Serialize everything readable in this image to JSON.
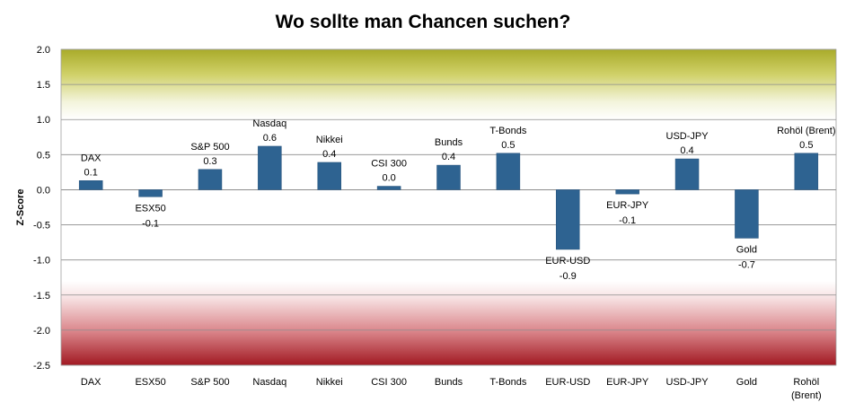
{
  "chart_data": {
    "type": "bar",
    "title": "Wo sollte man Chancen suchen?",
    "xlabel": "",
    "ylabel": "Z-Score",
    "ylim": [
      -2.5,
      2.0
    ],
    "y_ticks": [
      "2.0",
      "1.5",
      "1.0",
      "0.5",
      "0.0",
      "-0.5",
      "-1.0",
      "-1.5",
      "-2.0",
      "-2.5"
    ],
    "grid": true,
    "legend": "none",
    "categories": [
      "DAX",
      "ESX50",
      "S&P 500",
      "Nasdaq",
      "Nikkei",
      "CSI 300",
      "Bunds",
      "T-Bonds",
      "EUR-USD",
      "EUR-JPY",
      "USD-JPY",
      "Gold",
      "Rohöl (Brent)"
    ],
    "category_axis_labels": [
      [
        "DAX"
      ],
      [
        "ESX50"
      ],
      [
        "S&P 500"
      ],
      [
        "Nasdaq"
      ],
      [
        "Nikkei"
      ],
      [
        "CSI 300"
      ],
      [
        "Bunds"
      ],
      [
        "T-Bonds"
      ],
      [
        "EUR-USD"
      ],
      [
        "EUR-JPY"
      ],
      [
        "USD-JPY"
      ],
      [
        "Gold"
      ],
      [
        "Rohöl",
        "(Brent)"
      ]
    ],
    "values": [
      0.13,
      -0.1,
      0.29,
      0.62,
      0.39,
      0.05,
      0.35,
      0.52,
      -0.85,
      -0.06,
      0.44,
      -0.69,
      0.52
    ],
    "value_labels": [
      "0.1",
      "-0.1",
      "0.3",
      "0.6",
      "0.4",
      "0.0",
      "0.4",
      "0.5",
      "-0.9",
      "-0.1",
      "0.4",
      "-0.7",
      "0.5"
    ],
    "colors": {
      "bar": "#2e6391",
      "bar_edge": "#24507a",
      "grid": "#8c8c8c",
      "axis_text": "#000000",
      "zone_top": "#a9ab2a",
      "zone_bottom": "#a11922"
    }
  }
}
